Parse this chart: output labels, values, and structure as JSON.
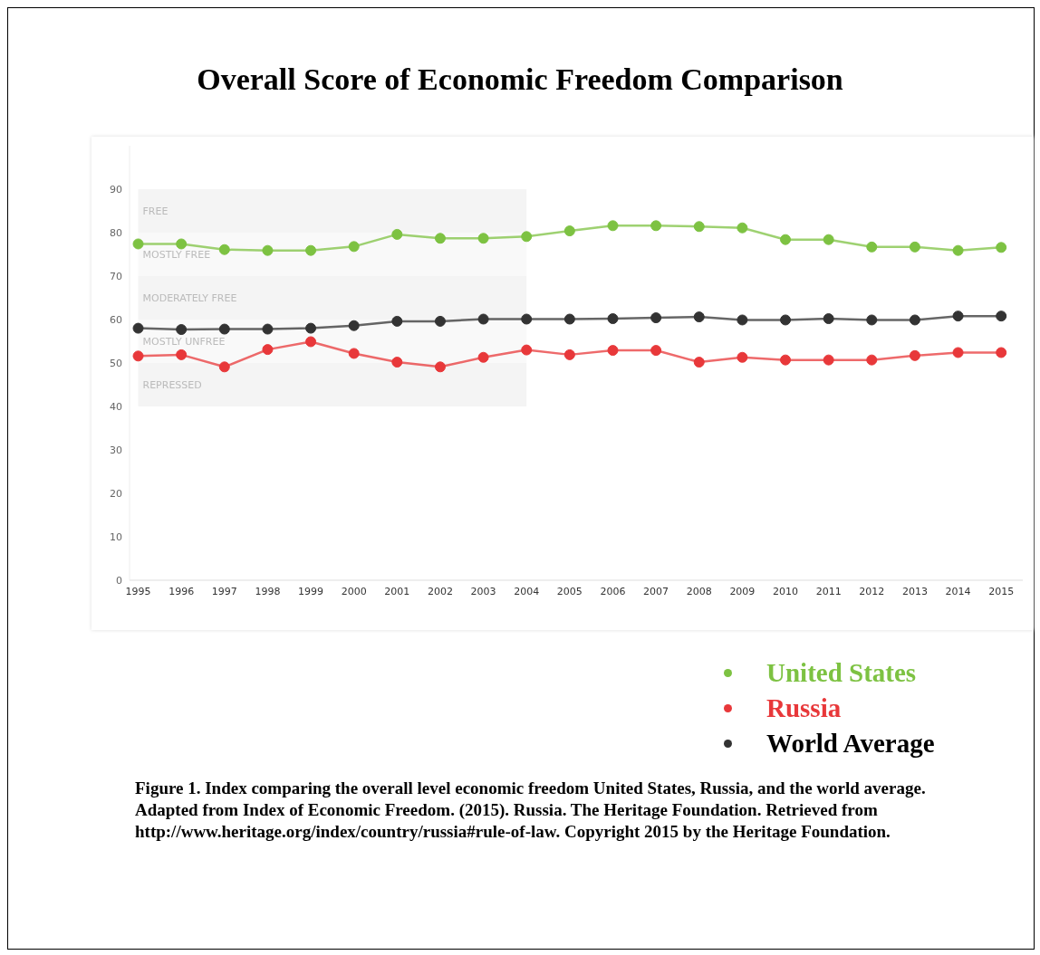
{
  "chart_data": {
    "type": "line",
    "title": "Overall Score of Economic Freedom Comparison",
    "categories": [
      "1995",
      "1996",
      "1997",
      "1998",
      "1999",
      "2000",
      "2001",
      "2002",
      "2003",
      "2004",
      "2005",
      "2006",
      "2007",
      "2008",
      "2009",
      "2010",
      "2011",
      "2012",
      "2013",
      "2014",
      "2015"
    ],
    "series": [
      {
        "name": "United States",
        "color": "#7dc242",
        "values": [
          77.4,
          77.4,
          76.1,
          75.9,
          75.9,
          76.8,
          79.6,
          78.7,
          78.7,
          79.1,
          80.4,
          81.6,
          81.6,
          81.4,
          81.1,
          78.4,
          78.4,
          76.7,
          76.7,
          75.9,
          76.6
        ]
      },
      {
        "name": "Russia",
        "color": "#e8383a",
        "values": [
          51.6,
          51.9,
          49.1,
          53.1,
          54.9,
          52.2,
          50.2,
          49.1,
          51.3,
          53.0,
          51.9,
          52.9,
          52.9,
          50.2,
          51.3,
          50.7,
          50.7,
          50.7,
          51.7,
          52.4,
          52.4
        ]
      },
      {
        "name": "World Average",
        "color": "#333333",
        "values": [
          58.0,
          57.7,
          57.8,
          57.8,
          58.0,
          58.6,
          59.6,
          59.6,
          60.1,
          60.1,
          60.1,
          60.2,
          60.4,
          60.6,
          59.9,
          59.9,
          60.2,
          59.9,
          59.9,
          60.8,
          60.8
        ]
      }
    ],
    "ylim": [
      0,
      100
    ],
    "yticks": [
      0,
      10,
      20,
      30,
      40,
      50,
      60,
      70,
      80,
      90
    ],
    "bands": [
      {
        "axis": "y",
        "from": 80,
        "to": 90,
        "label": "FREE",
        "color": "#f4f4f4"
      },
      {
        "axis": "y",
        "from": 70,
        "to": 80,
        "label": "MOSTLY FREE",
        "color": "#f9f9f9"
      },
      {
        "axis": "y",
        "from": 60,
        "to": 70,
        "label": "MODERATELY FREE",
        "color": "#f4f4f4"
      },
      {
        "axis": "y",
        "from": 50,
        "to": 60,
        "label": "MOSTLY UNFREE",
        "color": "#f9f9f9"
      },
      {
        "axis": "y",
        "from": 40,
        "to": 50,
        "label": "REPRESSED",
        "color": "#f4f4f4"
      }
    ],
    "grid": false,
    "legend": "bottom right",
    "marker": "circle",
    "line_style": "solid",
    "annotations": [
      "Figure 1. Index comparing the overall level economic freedom United States, Russia, and the world average. Adapted from Index of Economic Freedom. (2015). Russia. The Heritage Foundation. Retrieved from http://www.heritage.org/index/country/russia#rule-of-law. Copyright 2015 by the Heritage Foundation."
    ]
  }
}
